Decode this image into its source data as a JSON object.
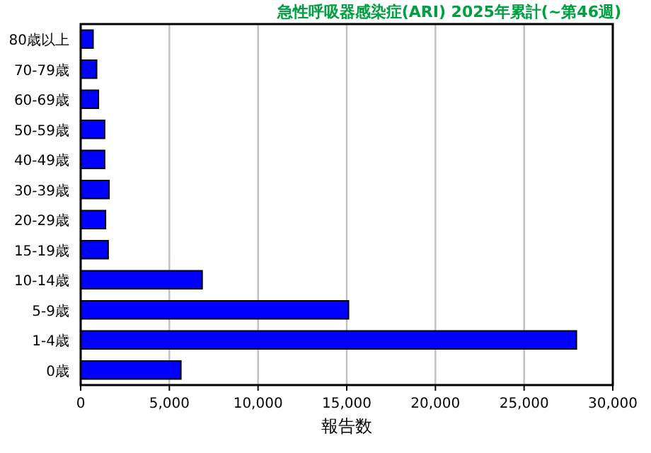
{
  "chart_data": {
    "type": "bar",
    "orientation": "horizontal",
    "title": "急性呼吸器感染症(ARI) 2025年累計(~第46週)",
    "xlabel": "報告数",
    "categories": [
      "80歳以上",
      "70-79歳",
      "60-69歳",
      "50-59歳",
      "40-49歳",
      "30-39歳",
      "20-29歳",
      "15-19歳",
      "10-14歳",
      "5-9歳",
      "1-4歳",
      "0歳"
    ],
    "values": [
      700,
      900,
      1000,
      1350,
      1350,
      1600,
      1400,
      1550,
      6850,
      15100,
      27950,
      5650
    ],
    "color": "#0000ff",
    "xlim": [
      0,
      30000
    ],
    "xticks": [
      0,
      {
        "value": 5000,
        "label": "5,000"
      },
      {
        "value": 10000,
        "label": "10,000"
      },
      {
        "value": 15000,
        "label": "15,000"
      },
      {
        "value": 20000,
        "label": "20,000"
      },
      {
        "value": 25000,
        "label": "25,000"
      },
      {
        "value": 30000,
        "label": "30,000"
      }
    ],
    "grid": "x"
  }
}
